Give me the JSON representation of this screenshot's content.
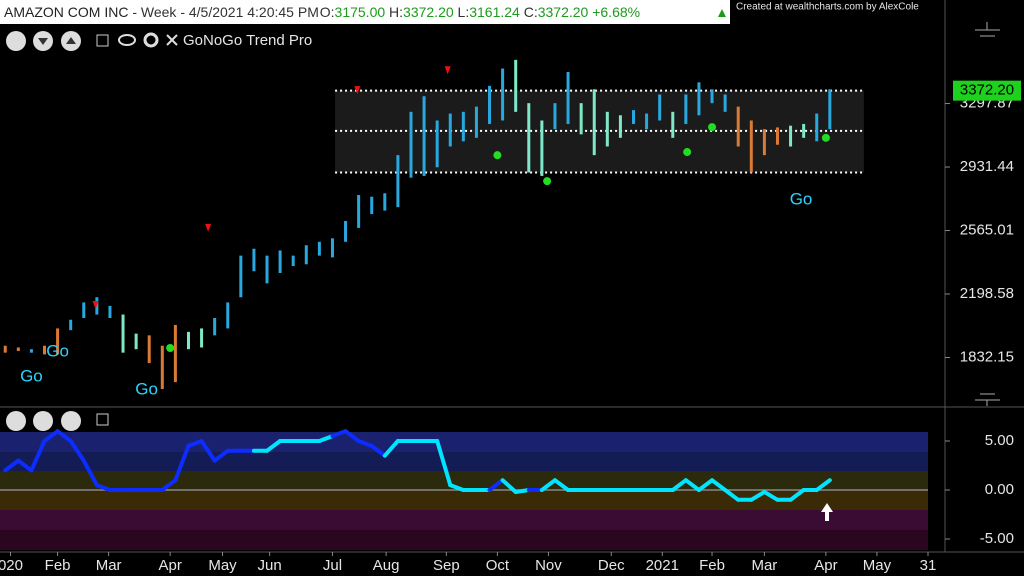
{
  "header": {
    "symbol": "AMAZON COM INC",
    "info": "- Week - 4/5/2021 4:20:45 PM",
    "open_label": "O:",
    "open": "3175.00",
    "high_label": "H:",
    "high": "3372.20",
    "low_label": "L:",
    "low": "3161.24",
    "close_label": "C:",
    "close": "3372.20",
    "change": "+6.68%",
    "credit": "Created at wealthcharts.com by AlexCole",
    "indicator": "GoNoGo Trend Pro"
  },
  "chart_data": [
    {
      "type": "ohlc",
      "high": [
        1900,
        1890,
        1880,
        1900,
        2000,
        2050,
        2150,
        2180,
        2130,
        2080,
        1970,
        1960,
        1900,
        2020,
        1980,
        2000,
        2060,
        2150,
        2420,
        2460,
        2420,
        2450,
        2420,
        2480,
        2500,
        2520,
        2620,
        2770,
        2760,
        2780,
        3000,
        3250,
        3340,
        3200,
        3240,
        3250,
        3280,
        3400,
        3500,
        3550,
        3300,
        3200,
        3300,
        3480,
        3300,
        3380,
        3250,
        3230,
        3260,
        3240,
        3350,
        3250,
        3350,
        3420,
        3380,
        3350,
        3280,
        3200,
        3150,
        3160,
        3170,
        3180,
        3240,
        3380
      ],
      "low": [
        1860,
        1870,
        1860,
        1850,
        1850,
        1990,
        2060,
        2080,
        2060,
        1860,
        1880,
        1800,
        1650,
        1690,
        1880,
        1890,
        1960,
        2000,
        2180,
        2330,
        2260,
        2320,
        2360,
        2370,
        2420,
        2410,
        2500,
        2580,
        2660,
        2680,
        2700,
        2870,
        2880,
        2930,
        3050,
        3080,
        3100,
        3180,
        3200,
        3250,
        2900,
        2880,
        3150,
        3180,
        3120,
        3000,
        3050,
        3100,
        3180,
        3150,
        3200,
        3100,
        3180,
        3230,
        3300,
        3250,
        3050,
        2900,
        3000,
        3060,
        3050,
        3100,
        3080,
        3150
      ],
      "colors": [
        "#d97a35",
        "#d97a35",
        "#29a8e0",
        "#d97a35",
        "#d97a35",
        "#29a8e0",
        "#29a8e0",
        "#29a8e0",
        "#29a8e0",
        "#7fe8c8",
        "#7fe8c8",
        "#d97a35",
        "#d97a35",
        "#d97a35",
        "#7fe8c8",
        "#7fe8c8",
        "#29a8e0",
        "#29a8e0",
        "#29a8e0",
        "#29a8e0",
        "#29a8e0",
        "#29a8e0",
        "#29a8e0",
        "#29a8e0",
        "#29a8e0",
        "#29a8e0",
        "#29a8e0",
        "#29a8e0",
        "#29a8e0",
        "#29a8e0",
        "#29a8e0",
        "#29a8e0",
        "#29a8e0",
        "#29a8e0",
        "#29a8e0",
        "#29a8e0",
        "#29a8e0",
        "#29a8e0",
        "#29a8e0",
        "#7fe8c8",
        "#7fe8c8",
        "#7fe8c8",
        "#29a8e0",
        "#29a8e0",
        "#7fe8c8",
        "#7fe8c8",
        "#7fe8c8",
        "#7fe8c8",
        "#29a8e0",
        "#29a8e0",
        "#29a8e0",
        "#7fe8c8",
        "#29a8e0",
        "#29a8e0",
        "#29a8e0",
        "#29a8e0",
        "#d97a35",
        "#d97a35",
        "#d97a35",
        "#d97a35",
        "#7fe8c8",
        "#7fe8c8",
        "#29a8e0",
        "#29a8e0"
      ],
      "xlim": [
        -0.4,
        70.5
      ],
      "ylim": [
        1558,
        3780
      ],
      "yticks": [
        {
          "value": 3297.87,
          "label": "3297.87"
        },
        {
          "value": 2931.44,
          "label": "2931.44"
        },
        {
          "value": 2565.01,
          "label": "2565.01"
        },
        {
          "value": 2198.58,
          "label": "2198.58"
        },
        {
          "value": 1832.15,
          "label": "1832.15"
        }
      ],
      "last_price": {
        "value": 3372.2,
        "label": "3372.20"
      },
      "range_levels": [
        3372.2,
        3140,
        2900
      ],
      "range_x": [
        25.2,
        65.6
      ],
      "green_dots": [
        {
          "x": 12.6,
          "y": 1887
        },
        {
          "x": 37.6,
          "y": 3000
        },
        {
          "x": 41.4,
          "y": 2850
        },
        {
          "x": 52.1,
          "y": 3018
        },
        {
          "x": 54,
          "y": 3162
        },
        {
          "x": 62.7,
          "y": 3100
        }
      ],
      "red_triangles": [
        {
          "x": 6.9,
          "y": 2135
        },
        {
          "x": 15.5,
          "y": 2580
        },
        {
          "x": 26.9,
          "y": 3375
        },
        {
          "x": 33.8,
          "y": 3490
        }
      ],
      "annotations": [
        {
          "text": "Go",
          "x": 2,
          "y": 1720
        },
        {
          "text": "Go",
          "x": 4,
          "y": 1865
        },
        {
          "text": "Go",
          "x": 10.8,
          "y": 1645
        },
        {
          "text": "Go",
          "x": 60.8,
          "y": 2740
        }
      ]
    },
    {
      "type": "line",
      "values": [
        2,
        3,
        2,
        5,
        6,
        5,
        3,
        0.5,
        0,
        0,
        0,
        0,
        0,
        1,
        4.5,
        5,
        3,
        4,
        4,
        4,
        4,
        5,
        5,
        5,
        5,
        5.5,
        6,
        5,
        4.5,
        3.5,
        5,
        5,
        5,
        5,
        0.5,
        0,
        0,
        0,
        1,
        -0.2,
        0,
        0,
        1,
        0,
        0,
        0,
        0,
        0,
        0,
        0,
        0,
        0,
        1,
        0,
        1,
        0,
        -1,
        -1,
        -0.2,
        -1,
        -1,
        0,
        0,
        1
      ],
      "colors": [
        "#0d2cff",
        "#0d2cff",
        "#0d2cff",
        "#0d2cff",
        "#0d2cff",
        "#0d2cff",
        "#0d2cff",
        "#0d2cff",
        "#0d2cff",
        "#0d2cff",
        "#0d2cff",
        "#0d2cff",
        "#0d2cff",
        "#0d2cff",
        "#0d2cff",
        "#0d2cff",
        "#0d2cff",
        "#0d2cff",
        "#0d2cff",
        "#0d2cff",
        "#00e5ff",
        "#00e5ff",
        "#00e5ff",
        "#00e5ff",
        "#00e5ff",
        "#00e5ff",
        "#0d2cff",
        "#0d2cff",
        "#0d2cff",
        "#0d2cff",
        "#00e5ff",
        "#00e5ff",
        "#00e5ff",
        "#00e5ff",
        "#00e5ff",
        "#00e5ff",
        "#00e5ff",
        "#00e5ff",
        "#0d2cff",
        "#00e5ff",
        "#00e5ff",
        "#0d2cff",
        "#00e5ff",
        "#00e5ff",
        "#00e5ff",
        "#00e5ff",
        "#00e5ff",
        "#00e5ff",
        "#00e5ff",
        "#00e5ff",
        "#00e5ff",
        "#00e5ff",
        "#00e5ff",
        "#00e5ff",
        "#00e5ff",
        "#00e5ff",
        "#00e5ff",
        "#00e5ff",
        "#00e5ff",
        "#00e5ff",
        "#00e5ff",
        "#00e5ff",
        "#00e5ff",
        "#00e5ff"
      ],
      "xlim": [
        -0.4,
        70.5
      ],
      "ylim": [
        -6.12,
        8.16
      ],
      "yticks": [
        {
          "value": 5,
          "label": "5.00"
        },
        {
          "value": 0,
          "label": "0.00"
        },
        {
          "value": -5,
          "label": "-5.00"
        }
      ],
      "xticks": [
        {
          "value": 0.4,
          "label": "020"
        },
        {
          "value": 4,
          "label": "Feb"
        },
        {
          "value": 7.9,
          "label": "Mar"
        },
        {
          "value": 12.6,
          "label": "Apr"
        },
        {
          "value": 16.6,
          "label": "May"
        },
        {
          "value": 20.2,
          "label": "Jun"
        },
        {
          "value": 25,
          "label": "Jul"
        },
        {
          "value": 29.1,
          "label": "Aug"
        },
        {
          "value": 33.7,
          "label": "Sep"
        },
        {
          "value": 37.6,
          "label": "Oct"
        },
        {
          "value": 41.5,
          "label": "Nov"
        },
        {
          "value": 46.3,
          "label": "Dec"
        },
        {
          "value": 50.2,
          "label": "2021"
        },
        {
          "value": 54,
          "label": "Feb"
        },
        {
          "value": 58,
          "label": "Mar"
        },
        {
          "value": 62.7,
          "label": "Apr"
        },
        {
          "value": 66.6,
          "label": "May"
        },
        {
          "value": 70.5,
          "label": "31"
        }
      ]
    }
  ]
}
